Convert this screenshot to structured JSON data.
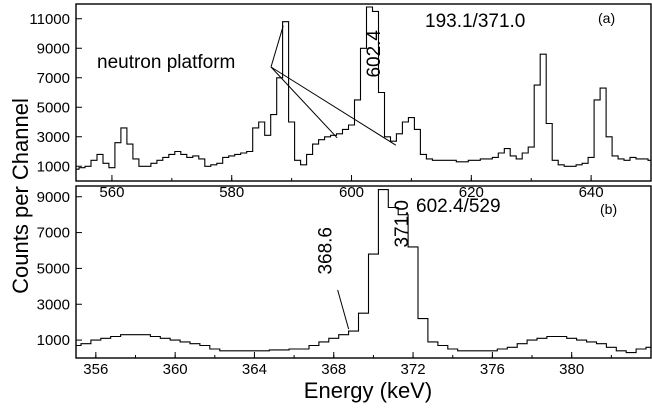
{
  "ylabel": "Counts per Channel",
  "xlabel": "Energy (keV)",
  "chart_data": [
    {
      "type": "line",
      "panel": "(a)",
      "gate_label": "193.1/371.0",
      "xlim": [
        554,
        650
      ],
      "ylim": [
        0,
        12000
      ],
      "xticks": [
        560,
        580,
        600,
        620,
        640
      ],
      "yticks": [
        1000,
        3000,
        5000,
        7000,
        9000,
        11000
      ],
      "peak_label": "602.4",
      "peak_x": 602.4,
      "platform_label": "neutron platform",
      "x": [
        554,
        555,
        556,
        557,
        558,
        559,
        560,
        561,
        562,
        563,
        564,
        565,
        566,
        567,
        568,
        569,
        570,
        571,
        572,
        573,
        574,
        575,
        576,
        577,
        578,
        579,
        580,
        581,
        582,
        583,
        584,
        585,
        586,
        587,
        588,
        589,
        590,
        591,
        592,
        593,
        594,
        595,
        596,
        597,
        598,
        599,
        600,
        601,
        602,
        603,
        604,
        605,
        606,
        607,
        608,
        609,
        610,
        611,
        612,
        613,
        614,
        615,
        616,
        617,
        618,
        619,
        620,
        621,
        622,
        623,
        624,
        625,
        626,
        627,
        628,
        629,
        630,
        631,
        632,
        633,
        634,
        635,
        636,
        637,
        638,
        639,
        640,
        641,
        642,
        643,
        644,
        645,
        646,
        647,
        648,
        649,
        650
      ],
      "values": [
        800,
        900,
        1000,
        1400,
        1800,
        1200,
        900,
        2600,
        3600,
        2500,
        1500,
        1000,
        1000,
        1200,
        1400,
        1600,
        1800,
        2000,
        1800,
        1600,
        1700,
        1500,
        1000,
        1100,
        1200,
        1600,
        1700,
        1800,
        1900,
        2000,
        3600,
        4000,
        3100,
        4500,
        7000,
        10800,
        4000,
        1400,
        1100,
        1800,
        2500,
        2800,
        3000,
        3100,
        3200,
        3500,
        3800,
        5500,
        9000,
        11800,
        11500,
        6000,
        3000,
        2700,
        3200,
        4000,
        4300,
        3500,
        1800,
        1500,
        1400,
        1400,
        1400,
        1400,
        1300,
        1300,
        1400,
        1400,
        1500,
        1500,
        1600,
        1900,
        2200,
        1700,
        1500,
        1900,
        2300,
        6500,
        8600,
        3900,
        1400,
        1100,
        1000,
        1000,
        1100,
        1200,
        1600,
        5500,
        6300,
        3000,
        1700,
        1500,
        1400,
        1600,
        1500,
        1500,
        1400
      ],
      "platform_targets": [
        588.6,
        597.6,
        607.4
      ]
    },
    {
      "type": "line",
      "panel": "(b)",
      "gate_label": "602.4/529",
      "xlim": [
        355,
        384
      ],
      "ylim": [
        0,
        9600
      ],
      "xticks": [
        356,
        360,
        364,
        368,
        372,
        376,
        380
      ],
      "yticks": [
        1000,
        3000,
        5000,
        7000,
        9000
      ],
      "labels": [
        {
          "text": "368.6",
          "x": 368.6
        },
        {
          "text": "371.0",
          "x": 371.0
        }
      ],
      "x": [
        355,
        355.5,
        356,
        356.5,
        357,
        357.5,
        358,
        358.5,
        359,
        359.5,
        360,
        360.5,
        361,
        361.5,
        362,
        362.5,
        363,
        363.5,
        364,
        364.5,
        365,
        365.5,
        366,
        366.5,
        367,
        367.5,
        368,
        368.5,
        369,
        369.5,
        370,
        370.5,
        371,
        371.5,
        372,
        372.5,
        373,
        373.5,
        374,
        374.5,
        375,
        375.5,
        376,
        376.5,
        377,
        377.5,
        378,
        378.5,
        379,
        379.5,
        380,
        380.5,
        381,
        381.5,
        382,
        382.5,
        383,
        383.5,
        384
      ],
      "values": [
        700,
        800,
        1000,
        1100,
        1200,
        1300,
        1300,
        1300,
        1200,
        1100,
        1000,
        900,
        800,
        700,
        500,
        400,
        400,
        400,
        400,
        400,
        450,
        450,
        500,
        500,
        700,
        900,
        1100,
        1300,
        1500,
        2500,
        5800,
        9400,
        8400,
        8000,
        6200,
        2200,
        900,
        700,
        500,
        400,
        400,
        400,
        400,
        500,
        600,
        800,
        1000,
        1100,
        1200,
        1200,
        1100,
        1000,
        900,
        800,
        600,
        400,
        300,
        500,
        600
      ]
    }
  ]
}
